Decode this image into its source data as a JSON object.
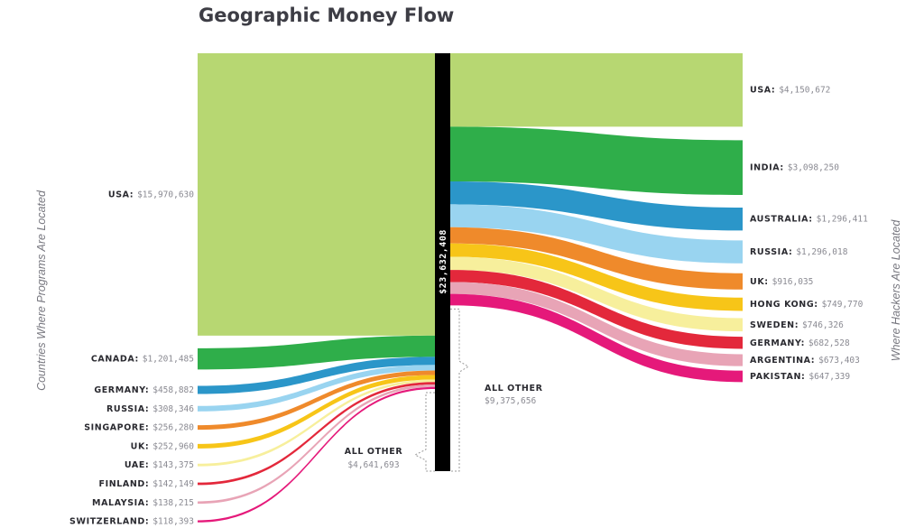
{
  "chart_data": {
    "type": "sankey",
    "title": "Geographic Money Flow",
    "left_axis_label": "Countries Where Programs Are Located",
    "right_axis_label": "Where Hackers Are Located",
    "total_label": "$23,632,408",
    "left": [
      {
        "name": "USA",
        "value_label": "$15,970,630",
        "value": 15970630,
        "color": "#b7d772"
      },
      {
        "name": "CANADA",
        "value_label": "$1,201,485",
        "value": 1201485,
        "color": "#2fae4a"
      },
      {
        "name": "GERMANY",
        "value_label": "$458,882",
        "value": 458882,
        "color": "#2b96c9"
      },
      {
        "name": "RUSSIA",
        "value_label": "$308,346",
        "value": 308346,
        "color": "#99d4f0"
      },
      {
        "name": "SINGAPORE",
        "value_label": "$256,280",
        "value": 256280,
        "color": "#ef8a2b"
      },
      {
        "name": "UK",
        "value_label": "$252,960",
        "value": 252960,
        "color": "#f7c518"
      },
      {
        "name": "UAE",
        "value_label": "$143,375",
        "value": 143375,
        "color": "#f7ef9c"
      },
      {
        "name": "FINLAND",
        "value_label": "$142,149",
        "value": 142149,
        "color": "#e3283b"
      },
      {
        "name": "MALAYSIA",
        "value_label": "$138,215",
        "value": 138215,
        "color": "#e8a4b6"
      },
      {
        "name": "SWITZERLAND",
        "value_label": "$118,393",
        "value": 118393,
        "color": "#e5197a"
      },
      {
        "name": "ALL OTHER",
        "value_label": "$4,641,693",
        "value": 4641693
      }
    ],
    "right": [
      {
        "name": "USA",
        "value_label": "$4,150,672",
        "value": 4150672,
        "color": "#b7d772"
      },
      {
        "name": "INDIA",
        "value_label": "$3,098,250",
        "value": 3098250,
        "color": "#2fae4a"
      },
      {
        "name": "AUSTRALIA",
        "value_label": "$1,296,411",
        "value": 1296411,
        "color": "#2b96c9"
      },
      {
        "name": "RUSSIA",
        "value_label": "$1,296,018",
        "value": 1296018,
        "color": "#99d4f0"
      },
      {
        "name": "UK",
        "value_label": "$916,035",
        "value": 916035,
        "color": "#ef8a2b"
      },
      {
        "name": "HONG KONG",
        "value_label": "$749,770",
        "value": 749770,
        "color": "#f7c518"
      },
      {
        "name": "SWEDEN",
        "value_label": "$746,326",
        "value": 746326,
        "color": "#f7ef9c"
      },
      {
        "name": "GERMANY",
        "value_label": "$682,528",
        "value": 682528,
        "color": "#e3283b"
      },
      {
        "name": "ARGENTINA",
        "value_label": "$673,403",
        "value": 673403,
        "color": "#e8a4b6"
      },
      {
        "name": "PAKISTAN",
        "value_label": "$647,339",
        "value": 647339,
        "color": "#e5197a"
      },
      {
        "name": "ALL OTHER",
        "value_label": "$9,375,656",
        "value": 9375656
      }
    ]
  }
}
